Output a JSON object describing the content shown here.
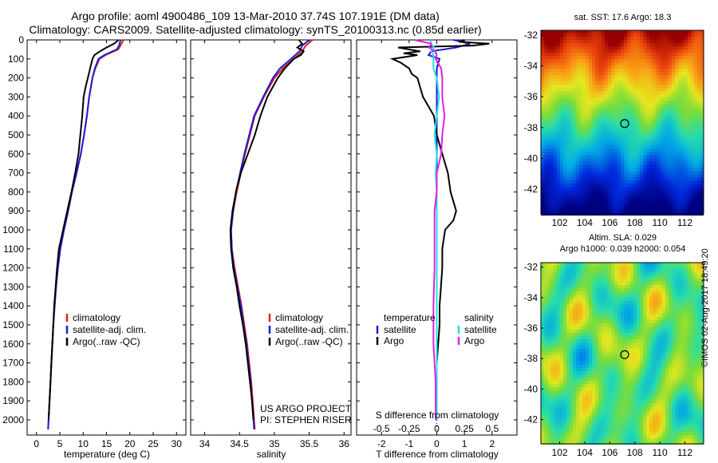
{
  "header": {
    "title1": "Argo profile: aoml 4900486_109 13-Mar-2010 37.74S 107.191E (DM data)",
    "title2": "Climatology: CARS2009. Satellite-adjusted climatology: synTS_20100313.nc (0.85d earlier)"
  },
  "colors": {
    "climatology": "#e0201a",
    "satellite": "#1c1cd8",
    "argo": "#000000",
    "sal_satellite": "#20e0e8",
    "sal_argo": "#e020e0"
  },
  "chart_data": [
    {
      "type": "line",
      "name": "temperature-panel",
      "xlabel": "temperature (deg C)",
      "ylabel": "",
      "xlim": [
        -2,
        32
      ],
      "ylim": [
        2080,
        0
      ],
      "xticks": [
        0,
        5,
        10,
        15,
        20,
        25,
        30
      ],
      "yticks": [
        0,
        100,
        200,
        300,
        400,
        500,
        600,
        700,
        800,
        900,
        1000,
        1100,
        1200,
        1300,
        1400,
        1500,
        1600,
        1700,
        1800,
        1900,
        2000
      ],
      "legend": [
        "climatology",
        "satellite-adj. clim.",
        "Argo(..raw -QC)"
      ],
      "series": [
        {
          "name": "climatology",
          "depth": [
            0,
            30,
            50,
            80,
            100,
            150,
            200,
            300,
            400,
            500,
            600,
            700,
            800,
            900,
            1000,
            1100,
            1200,
            1300,
            1400,
            1500,
            1600,
            1700,
            1800,
            1900,
            2000,
            2050
          ],
          "values": [
            18.6,
            18.0,
            17.5,
            14.8,
            13.5,
            12.6,
            12.0,
            11.3,
            10.8,
            10.2,
            9.5,
            8.6,
            7.6,
            6.8,
            5.9,
            5.1,
            4.6,
            4.2,
            3.9,
            3.6,
            3.4,
            3.2,
            3.0,
            2.8,
            2.6,
            2.5
          ]
        },
        {
          "name": "satellite-adj. clim.",
          "depth": [
            0,
            30,
            50,
            80,
            100,
            150,
            200,
            300,
            400,
            500,
            600,
            700,
            800,
            900,
            1000,
            1100,
            1200,
            1300,
            1400,
            1500,
            1600,
            1700,
            1800,
            1900,
            2000,
            2050
          ],
          "values": [
            18.0,
            17.7,
            17.2,
            14.5,
            13.3,
            12.5,
            12.0,
            11.3,
            10.8,
            10.2,
            9.5,
            8.6,
            7.6,
            6.8,
            5.9,
            5.1,
            4.6,
            4.2,
            3.9,
            3.6,
            3.4,
            3.2,
            3.0,
            2.8,
            2.6,
            2.5
          ]
        },
        {
          "name": "Argo(..raw -QC)",
          "depth": [
            0,
            20,
            40,
            60,
            80,
            100,
            150,
            200,
            250,
            300,
            400,
            500,
            600,
            700,
            800,
            900,
            1000,
            1100,
            1200,
            1300,
            1400,
            1500,
            1600,
            1700,
            1800,
            1900,
            2000
          ],
          "values": [
            17.6,
            16.6,
            15.0,
            13.6,
            12.4,
            12.0,
            11.5,
            11.0,
            10.5,
            10.1,
            9.8,
            9.4,
            9.0,
            8.3,
            7.5,
            6.6,
            5.7,
            4.8,
            4.4,
            4.1,
            3.8,
            3.6,
            3.4,
            3.2,
            3.0,
            2.8,
            2.6
          ]
        }
      ]
    },
    {
      "type": "line",
      "name": "salinity-panel",
      "xlabel": "salinity",
      "ylabel": "",
      "xlim": [
        33.8,
        36.1
      ],
      "ylim": [
        2080,
        0
      ],
      "xticks": [
        34,
        34.5,
        35,
        35.5,
        36
      ],
      "legend": [
        "climatology",
        "satellite-adj. clim.",
        "Argo(..raw -QC)"
      ],
      "annotation": [
        "US ARGO PROJECT",
        "PI: STEPHEN RISER"
      ],
      "series": [
        {
          "name": "climatology",
          "depth": [
            0,
            30,
            60,
            100,
            150,
            200,
            300,
            400,
            500,
            600,
            700,
            800,
            900,
            1000,
            1100,
            1200,
            1300,
            1400,
            1500,
            1600,
            1700,
            1800,
            1900,
            2000,
            2050
          ],
          "values": [
            35.55,
            35.45,
            35.4,
            35.28,
            35.12,
            35.0,
            34.85,
            34.72,
            34.65,
            34.58,
            34.52,
            34.46,
            34.41,
            34.38,
            34.39,
            34.43,
            34.48,
            34.53,
            34.57,
            34.61,
            34.64,
            34.67,
            34.69,
            34.71,
            34.72
          ]
        },
        {
          "name": "satellite-adj. clim.",
          "depth": [
            0,
            30,
            60,
            100,
            150,
            200,
            300,
            400,
            500,
            600,
            700,
            800,
            900,
            1000,
            1100,
            1200,
            1300,
            1400,
            1500,
            1600,
            1700,
            1800,
            1900,
            2000,
            2050
          ],
          "values": [
            35.5,
            35.4,
            35.36,
            35.24,
            35.08,
            34.98,
            34.84,
            34.71,
            34.64,
            34.57,
            34.51,
            34.45,
            34.41,
            34.38,
            34.39,
            34.42,
            34.47,
            34.52,
            34.56,
            34.6,
            34.63,
            34.66,
            34.68,
            34.7,
            34.71
          ]
        },
        {
          "name": "Argo(..raw -QC)",
          "depth": [
            0,
            20,
            40,
            60,
            80,
            100,
            150,
            200,
            300,
            400,
            500,
            600,
            700,
            800,
            900,
            1000,
            1100,
            1200,
            1300,
            1400,
            1500,
            1600,
            1700,
            1800,
            1900,
            2000
          ],
          "values": [
            35.35,
            35.4,
            35.33,
            35.42,
            35.38,
            35.28,
            35.15,
            35.05,
            34.9,
            34.8,
            34.72,
            34.62,
            34.52,
            34.45,
            34.4,
            34.37,
            34.38,
            34.41,
            34.46,
            34.5,
            34.55,
            34.59,
            34.62,
            34.65,
            34.68,
            34.7
          ]
        }
      ]
    },
    {
      "type": "line",
      "name": "difference-panel",
      "xlabel": "T difference from climatology",
      "xlabel_top": "S difference from climatology",
      "xlim": [
        -2.9,
        2.9
      ],
      "ylim": [
        2080,
        0
      ],
      "xticks": [
        -2,
        -1,
        0,
        1,
        2
      ],
      "xticks_top": [
        -0.5,
        -0.25,
        0,
        0.25,
        0.5
      ],
      "legend_left_title": "temperature",
      "legend_right_title": "salinity",
      "legend_left": [
        "satellite",
        "Argo"
      ],
      "legend_right": [
        "satellite",
        "Argo"
      ],
      "series": [
        {
          "name": "temperature satellite",
          "depth": [
            0,
            20,
            40,
            60,
            80,
            100,
            150,
            200,
            300,
            400,
            600,
            800,
            1000,
            1200,
            1500,
            2000
          ],
          "values": [
            0.6,
            1.2,
            0.7,
            -0.2,
            -0.3,
            0.1,
            0.0,
            0.0,
            0.0,
            0.0,
            0.0,
            0.0,
            0.0,
            0.0,
            0.0,
            0.0
          ]
        },
        {
          "name": "temperature Argo",
          "depth": [
            0,
            10,
            20,
            30,
            40,
            50,
            60,
            70,
            80,
            100,
            120,
            150,
            180,
            200,
            250,
            300,
            350,
            400,
            500,
            600,
            700,
            800,
            850,
            900,
            950,
            1000,
            1100,
            1200,
            1400,
            1500,
            1700,
            1900,
            2000
          ],
          "values": [
            1.0,
            0.8,
            1.9,
            1.3,
            -1.4,
            -1.0,
            -0.6,
            -1.2,
            -0.7,
            -1.6,
            -1.3,
            -1.0,
            -0.9,
            -0.7,
            -0.6,
            -0.5,
            -0.3,
            -0.1,
            0.0,
            0.2,
            0.4,
            0.5,
            0.6,
            0.7,
            0.6,
            0.3,
            0.2,
            0.2,
            0.1,
            0.1,
            0.0,
            0.0,
            0.0
          ]
        },
        {
          "name": "salinity satellite",
          "depth": [
            0,
            20,
            40,
            60,
            80,
            100,
            150,
            200,
            300,
            400,
            500,
            600,
            700,
            800,
            900,
            1000,
            1200,
            1500,
            2000
          ],
          "values": [
            -0.05,
            -0.06,
            -0.02,
            -0.05,
            -0.03,
            -0.03,
            -0.03,
            0.0,
            0.02,
            0.0,
            -0.02,
            0.0,
            -0.01,
            0.0,
            0.0,
            0.0,
            0.0,
            0.0,
            0.0
          ]
        },
        {
          "name": "salinity Argo",
          "depth": [
            0,
            20,
            40,
            60,
            80,
            100,
            150,
            200,
            300,
            400,
            500,
            600,
            700,
            800,
            900,
            1000,
            1200,
            1400,
            1600,
            1800,
            2000
          ],
          "values": [
            -0.2,
            -0.05,
            -0.07,
            -0.02,
            0.0,
            -0.01,
            0.04,
            0.05,
            0.05,
            0.07,
            0.05,
            0.04,
            0.0,
            0.0,
            -0.02,
            -0.02,
            -0.02,
            -0.03,
            -0.03,
            -0.01,
            -0.01
          ]
        }
      ]
    },
    {
      "type": "heatmap",
      "name": "sst-map",
      "title": "sat. SST: 17.6  Argo: 18.3",
      "xlim": [
        100.5,
        113.5
      ],
      "ylim": [
        -43.6,
        -31.7
      ],
      "xticks": [
        102,
        104,
        106,
        108,
        110,
        112
      ],
      "yticks": [
        -32,
        -34,
        -36,
        -38,
        -40,
        -42
      ],
      "marker": {
        "lon": 107.191,
        "lat": -37.74
      }
    },
    {
      "type": "heatmap",
      "name": "sla-map",
      "title_lines": [
        "Altim. SLA: 0.029",
        "Argo h1000: 0.039 h2000: 0.054"
      ],
      "xlim": [
        100.5,
        113.5
      ],
      "ylim": [
        -43.6,
        -31.7
      ],
      "xticks": [
        102,
        104,
        106,
        108,
        110,
        112
      ],
      "yticks": [
        -32,
        -34,
        -36,
        -38,
        -40,
        -42
      ],
      "marker": {
        "lon": 107.191,
        "lat": -37.74
      }
    }
  ],
  "footer": {
    "copyright": "©IMOS 02-Aug-2017 18:49:20"
  }
}
